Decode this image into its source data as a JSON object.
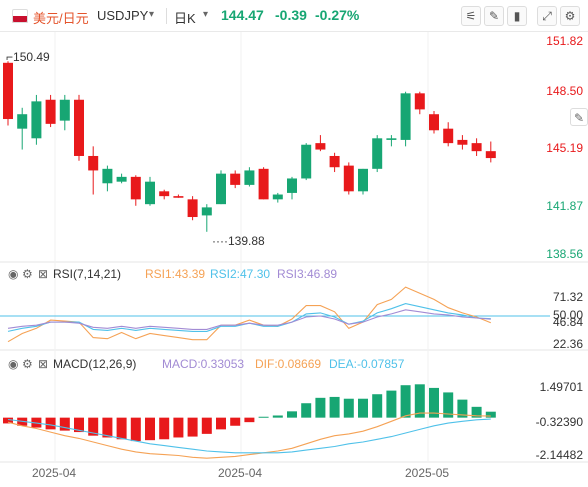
{
  "header": {
    "pair_cn": "美元/日元",
    "pair": "USDJPY",
    "period": "日K",
    "price": "144.47",
    "change": "-0.39",
    "change_pct": "-0.27%"
  },
  "toolbar_icons": [
    "indicator-icon",
    "draw-icon",
    "chart-type-icon",
    "fullscreen-icon",
    "settings-icon"
  ],
  "colors": {
    "up": "#17a673",
    "down": "#e8191b",
    "rsi1": "#f5a255",
    "rsi2": "#4fc1e9",
    "rsi3": "#a28bd4",
    "dif": "#f5a255",
    "dea": "#4fc1e9"
  },
  "chart_data": [
    {
      "type": "candlestick",
      "y_ticks": [
        "151.82",
        "148.50",
        "145.19",
        "141.87",
        "138.56"
      ],
      "ylim": [
        138.56,
        151.82
      ],
      "annotations": [
        {
          "label": "150.49",
          "value": 150.49,
          "index": 0
        },
        {
          "label": "139.88",
          "value": 139.88,
          "index": 13
        }
      ],
      "x_labels": [
        "2025-04",
        "2025-04",
        "2025-05"
      ],
      "candles": [
        {
          "o": 150.4,
          "h": 150.5,
          "l": 146.5,
          "c": 146.9
        },
        {
          "o": 146.3,
          "h": 147.6,
          "l": 145.0,
          "c": 147.2
        },
        {
          "o": 145.7,
          "h": 148.4,
          "l": 145.3,
          "c": 148.0
        },
        {
          "o": 148.1,
          "h": 148.4,
          "l": 146.4,
          "c": 146.6
        },
        {
          "o": 146.8,
          "h": 148.4,
          "l": 146.2,
          "c": 148.1
        },
        {
          "o": 148.1,
          "h": 148.4,
          "l": 144.3,
          "c": 144.6
        },
        {
          "o": 144.6,
          "h": 145.2,
          "l": 142.2,
          "c": 143.7
        },
        {
          "o": 142.9,
          "h": 144.0,
          "l": 142.4,
          "c": 143.8
        },
        {
          "o": 143.0,
          "h": 143.5,
          "l": 142.9,
          "c": 143.3
        },
        {
          "o": 143.3,
          "h": 143.4,
          "l": 141.5,
          "c": 141.9
        },
        {
          "o": 141.6,
          "h": 143.3,
          "l": 141.5,
          "c": 143.0
        },
        {
          "o": 142.4,
          "h": 142.5,
          "l": 141.9,
          "c": 142.1
        },
        {
          "o": 142.1,
          "h": 142.2,
          "l": 142.0,
          "c": 142.0
        },
        {
          "o": 141.9,
          "h": 142.1,
          "l": 140.6,
          "c": 140.8
        },
        {
          "o": 140.9,
          "h": 141.6,
          "l": 139.88,
          "c": 141.4
        },
        {
          "o": 141.6,
          "h": 143.7,
          "l": 141.6,
          "c": 143.5
        },
        {
          "o": 143.5,
          "h": 143.7,
          "l": 142.6,
          "c": 142.8
        },
        {
          "o": 142.8,
          "h": 143.9,
          "l": 142.7,
          "c": 143.7
        },
        {
          "o": 143.8,
          "h": 143.9,
          "l": 141.9,
          "c": 141.9
        },
        {
          "o": 141.9,
          "h": 142.3,
          "l": 141.7,
          "c": 142.2
        },
        {
          "o": 142.3,
          "h": 143.3,
          "l": 141.9,
          "c": 143.2
        },
        {
          "o": 143.2,
          "h": 145.4,
          "l": 143.1,
          "c": 145.3
        },
        {
          "o": 145.4,
          "h": 145.9,
          "l": 144.9,
          "c": 145.0
        },
        {
          "o": 144.6,
          "h": 144.8,
          "l": 143.6,
          "c": 143.9
        },
        {
          "o": 144.0,
          "h": 144.2,
          "l": 142.2,
          "c": 142.4
        },
        {
          "o": 142.4,
          "h": 143.8,
          "l": 142.2,
          "c": 143.8
        },
        {
          "o": 143.8,
          "h": 145.9,
          "l": 143.6,
          "c": 145.7
        },
        {
          "o": 145.6,
          "h": 145.9,
          "l": 145.2,
          "c": 145.7
        },
        {
          "o": 145.6,
          "h": 148.6,
          "l": 145.2,
          "c": 148.5
        },
        {
          "o": 148.5,
          "h": 148.6,
          "l": 147.2,
          "c": 147.5
        },
        {
          "o": 147.2,
          "h": 147.4,
          "l": 146.0,
          "c": 146.2
        },
        {
          "o": 146.3,
          "h": 146.7,
          "l": 145.2,
          "c": 145.4
        },
        {
          "o": 145.6,
          "h": 145.9,
          "l": 145.0,
          "c": 145.3
        },
        {
          "o": 145.4,
          "h": 145.7,
          "l": 144.6,
          "c": 144.9
        },
        {
          "o": 144.9,
          "h": 145.5,
          "l": 144.2,
          "c": 144.47
        }
      ]
    },
    {
      "type": "line",
      "name": "RSI(7,14,21)",
      "labels": {
        "title": "RSI(7,14,21)",
        "s1": "RSI1:43.39",
        "s2": "RSI2:47.30",
        "s3": "RSI3:46.89"
      },
      "y_ticks": [
        "71.32",
        "50.00",
        "46.84",
        "22.36"
      ],
      "ylim": [
        17,
        80
      ],
      "reference": 50,
      "series": [
        {
          "name": "RSI1",
          "values": [
            25,
            33,
            38,
            46,
            45,
            44,
            29,
            28,
            34,
            28,
            33,
            31,
            29,
            27,
            27,
            41,
            41,
            46,
            41,
            40,
            47,
            60,
            60,
            54,
            38,
            44,
            61,
            66,
            78,
            72,
            66,
            58,
            53,
            49,
            43.39
          ]
        },
        {
          "name": "RSI2",
          "values": [
            35,
            38,
            40,
            44,
            44,
            44,
            37,
            36,
            38,
            36,
            38,
            37,
            36,
            35,
            35,
            40,
            40,
            43,
            40,
            40,
            44,
            52,
            53,
            49,
            42,
            45,
            53,
            57,
            62,
            59,
            56,
            53,
            51,
            48,
            47.3
          ]
        },
        {
          "name": "RSI3",
          "values": [
            38,
            40,
            41,
            44,
            44,
            43,
            39,
            38,
            40,
            38,
            40,
            39,
            38,
            37,
            37,
            41,
            41,
            43,
            41,
            41,
            44,
            49,
            50,
            47,
            42,
            44,
            49,
            52,
            56,
            54,
            52,
            51,
            49,
            48,
            46.89
          ]
        }
      ]
    },
    {
      "type": "bar",
      "name": "MACD(12,26,9)",
      "labels": {
        "title": "MACD(12,26,9)",
        "macd": "MACD:0.33053",
        "dif": "DIF:0.08669",
        "dea": "DEA:-0.07857"
      },
      "y_ticks": [
        "1.49701",
        "-0.32390",
        "-2.14482"
      ],
      "ylim": [
        -2.35,
        2.2
      ],
      "macd": [
        -0.32,
        -0.45,
        -0.55,
        -0.65,
        -0.72,
        -0.8,
        -1.0,
        -1.1,
        -1.2,
        -1.3,
        -1.25,
        -1.2,
        -1.1,
        -1.05,
        -0.9,
        -0.65,
        -0.45,
        -0.25,
        0.05,
        0.12,
        0.35,
        0.8,
        1.1,
        1.15,
        1.05,
        1.05,
        1.3,
        1.5,
        1.8,
        1.85,
        1.65,
        1.4,
        1.0,
        0.6,
        0.33053
      ],
      "dif": [
        -0.25,
        -0.45,
        -0.6,
        -0.8,
        -1.0,
        -1.15,
        -1.35,
        -1.55,
        -1.75,
        -1.9,
        -2.0,
        -2.05,
        -2.1,
        -2.2,
        -2.25,
        -2.2,
        -2.15,
        -2.05,
        -1.95,
        -1.85,
        -1.7,
        -1.45,
        -1.2,
        -1.0,
        -0.9,
        -0.75,
        -0.5,
        -0.2,
        0.1,
        0.25,
        0.25,
        0.2,
        0.15,
        0.1,
        0.08669
      ],
      "dea": [
        -0.1,
        -0.2,
        -0.3,
        -0.4,
        -0.55,
        -0.7,
        -0.85,
        -1.0,
        -1.15,
        -1.3,
        -1.45,
        -1.55,
        -1.65,
        -1.75,
        -1.85,
        -1.9,
        -1.95,
        -1.95,
        -1.95,
        -1.95,
        -1.9,
        -1.8,
        -1.7,
        -1.6,
        -1.45,
        -1.35,
        -1.2,
        -1.05,
        -0.85,
        -0.65,
        -0.45,
        -0.3,
        -0.2,
        -0.12,
        -0.07857
      ]
    }
  ]
}
